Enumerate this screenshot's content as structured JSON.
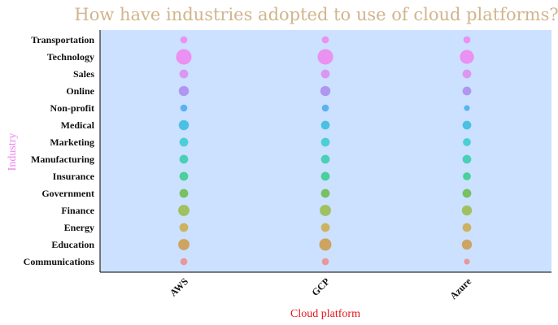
{
  "chart_data": {
    "type": "scatter",
    "title": "How have industries adopted to use of cloud platforms?",
    "xlabel": "Cloud platform",
    "ylabel": "Industry",
    "x_categories": [
      "AWS",
      "GCP",
      "Azure"
    ],
    "y_categories": [
      "Transportation",
      "Technology",
      "Sales",
      "Online",
      "Non-profit",
      "Medical",
      "Marketing",
      "Manufacturing",
      "Insurance",
      "Government",
      "Finance",
      "Energy",
      "Education",
      "Communications"
    ],
    "size_values": [
      [
        1,
        9,
        2,
        3,
        1,
        3,
        2,
        2,
        2,
        2,
        4,
        2,
        4,
        1
      ],
      [
        1,
        9,
        2,
        3,
        1,
        2,
        2,
        2,
        2,
        2,
        4,
        2,
        5,
        1
      ],
      [
        1,
        7,
        2,
        2,
        0.5,
        2,
        1.5,
        2,
        1.5,
        2,
        3,
        2,
        3,
        0.5
      ]
    ],
    "colors": [
      "#ee82ee",
      "#ee82ee",
      "#dd88ee",
      "#aa88ee",
      "#44aaee",
      "#33bbdd",
      "#33cccc",
      "#33ccaa",
      "#33cc88",
      "#66bb44",
      "#99bb44",
      "#ccaa44",
      "#cc9944",
      "#ee8888"
    ],
    "plot_bg": "#cce0ff",
    "grid": false,
    "legend": "none"
  }
}
